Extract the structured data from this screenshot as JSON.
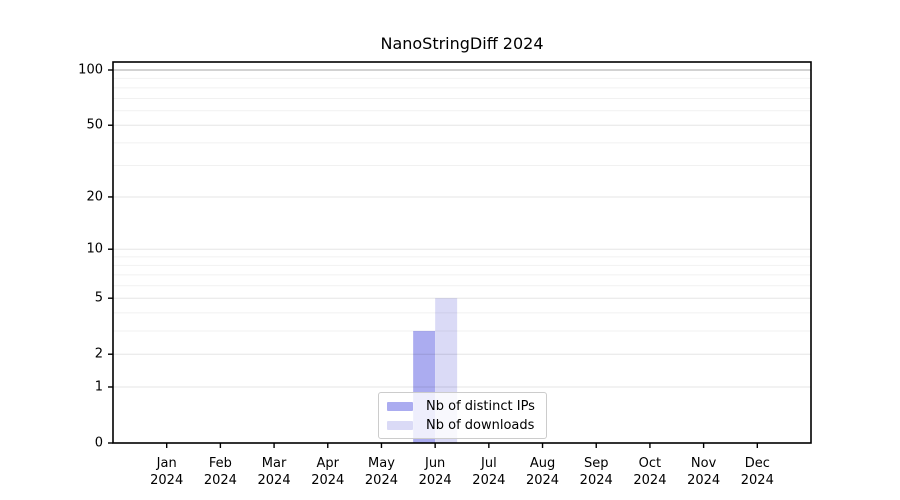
{
  "chart_data": {
    "type": "bar",
    "title": "NanoStringDiff 2024",
    "categories": [
      "Jan 2024",
      "Feb 2024",
      "Mar 2024",
      "Apr 2024",
      "May 2024",
      "Jun 2024",
      "Jul 2024",
      "Aug 2024",
      "Sep 2024",
      "Oct 2024",
      "Nov 2024",
      "Dec 2024"
    ],
    "series": [
      {
        "name": "Nb of distinct IPs",
        "color": "#abacf0",
        "values": [
          0,
          0,
          0,
          0,
          0,
          3,
          0,
          0,
          0,
          0,
          0,
          0
        ]
      },
      {
        "name": "Nb of downloads",
        "color": "#dadaf6",
        "values": [
          0,
          0,
          0,
          0,
          0,
          5,
          0,
          0,
          0,
          0,
          0,
          0
        ]
      }
    ],
    "yscale": "log1p",
    "ylim": [
      0,
      100
    ],
    "yticks": [
      0,
      1,
      2,
      5,
      10,
      20,
      50,
      100
    ],
    "minor_gridlines": [
      3,
      4,
      6,
      7,
      8,
      9,
      30,
      40,
      60,
      70,
      80,
      90
    ],
    "grid": true,
    "legend_position": "lower center",
    "colors": {
      "frame": "#000000",
      "grid_top_line": "#b8b8b8",
      "grid_major": "#e6e6e6",
      "grid_minor": "#f3f3f3",
      "tick_label": "#000000"
    }
  }
}
